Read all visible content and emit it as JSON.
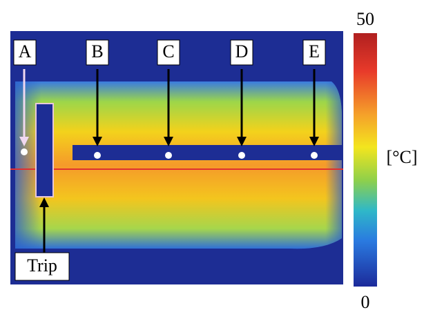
{
  "labels": [
    "A",
    "B",
    "C",
    "D",
    "E"
  ],
  "annotation": "Trip",
  "colorbar": {
    "max": "50",
    "min": "0",
    "unit": "[°C]"
  }
}
